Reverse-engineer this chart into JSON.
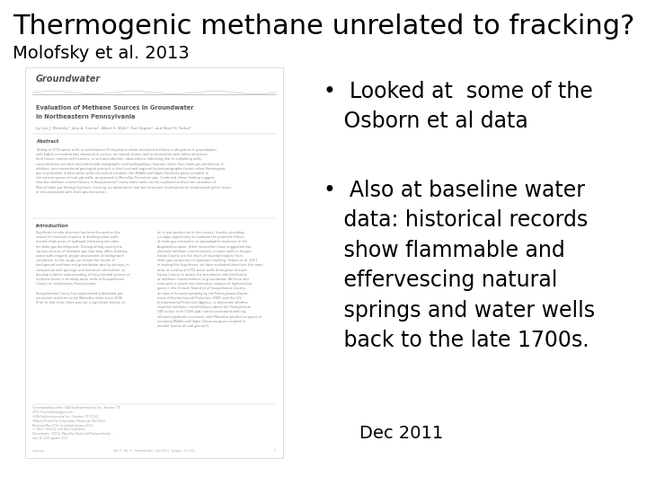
{
  "title": "Thermogenic methane unrelated to fracking?",
  "subtitle": "Molofsky et al. 2013",
  "bullet_text1": "•  Looked at  some of the\n   Osborn et al data",
  "bullet_text2": "•  Also at baseline water\n   data: historical records\n   show flammable and\n   effervescing natural\n   springs and water wells\n   back to the late 1700s.",
  "date_label": "Dec 2011",
  "bg_color": "#ffffff",
  "title_color": "#000000",
  "subtitle_color": "#000000",
  "text_color": "#000000",
  "title_fontsize": 22,
  "subtitle_fontsize": 14,
  "bullet_fontsize": 17,
  "date_fontsize": 14,
  "paper_text_color": "#888888",
  "paper_bold_color": "#555555"
}
